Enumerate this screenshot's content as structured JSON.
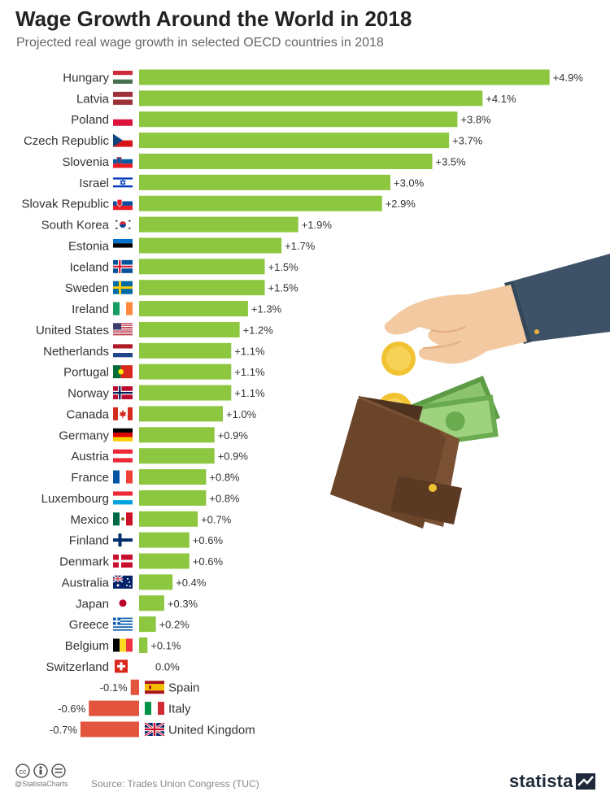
{
  "header": {
    "title": "Wage Growth Around the World in 2018",
    "subtitle": "Projected real wage growth in selected OECD countries in 2018"
  },
  "chart_data": {
    "type": "bar",
    "orientation": "horizontal",
    "title": "Wage Growth Around the World in 2018",
    "subtitle": "Projected real wage growth in selected OECD countries in 2018",
    "unit": "%",
    "categories": [
      "Hungary",
      "Latvia",
      "Poland",
      "Czech Republic",
      "Slovenia",
      "Israel",
      "Slovak Republic",
      "South Korea",
      "Estonia",
      "Iceland",
      "Sweden",
      "Ireland",
      "United States",
      "Netherlands",
      "Portugal",
      "Norway",
      "Canada",
      "Germany",
      "Austria",
      "France",
      "Luxembourg",
      "Mexico",
      "Finland",
      "Denmark",
      "Australia",
      "Japan",
      "Greece",
      "Belgium",
      "Switzerland",
      "Spain",
      "Italy",
      "United Kingdom"
    ],
    "values": [
      4.9,
      4.1,
      3.8,
      3.7,
      3.5,
      3.0,
      2.9,
      1.9,
      1.7,
      1.5,
      1.5,
      1.3,
      1.2,
      1.1,
      1.1,
      1.1,
      1.0,
      0.9,
      0.9,
      0.8,
      0.8,
      0.7,
      0.6,
      0.6,
      0.4,
      0.3,
      0.2,
      0.1,
      0.0,
      -0.1,
      -0.6,
      -0.7
    ],
    "data_labels": [
      "+4.9%",
      "+4.1%",
      "+3.8%",
      "+3.7%",
      "+3.5%",
      "+3.0%",
      "+2.9%",
      "+1.9%",
      "+1.7%",
      "+1.5%",
      "+1.5%",
      "+1.3%",
      "+1.2%",
      "+1.1%",
      "+1.1%",
      "+1.1%",
      "+1.0%",
      "+0.9%",
      "+0.9%",
      "+0.8%",
      "+0.8%",
      "+0.7%",
      "+0.6%",
      "+0.6%",
      "+0.4%",
      "+0.3%",
      "+0.2%",
      "+0.1%",
      "0.0%",
      "-0.1%",
      "-0.6%",
      "-0.7%"
    ],
    "flags": [
      "hungary-flag",
      "latvia-flag",
      "poland-flag",
      "czech-flag",
      "slovenia-flag",
      "israel-flag",
      "slovakia-flag",
      "south-korea-flag",
      "estonia-flag",
      "iceland-flag",
      "sweden-flag",
      "ireland-flag",
      "usa-flag",
      "netherlands-flag",
      "portugal-flag",
      "norway-flag",
      "canada-flag",
      "germany-flag",
      "austria-flag",
      "france-flag",
      "luxembourg-flag",
      "mexico-flag",
      "finland-flag",
      "denmark-flag",
      "australia-flag",
      "japan-flag",
      "greece-flag",
      "belgium-flag",
      "switzerland-flag",
      "spain-flag",
      "italy-flag",
      "uk-flag"
    ],
    "colors": {
      "positive": "#8dc63f",
      "negative": "#e2543e"
    },
    "xlim": [
      -0.7,
      4.9
    ],
    "grid": false,
    "legend": "none"
  },
  "footer": {
    "handle": "@StatistaCharts",
    "source": "Source: Trades Union Congress (TUC)",
    "brand": "statista",
    "license_icon": "creative-commons-icon"
  },
  "illustration": {
    "description_icon": "hand-wallet-coins-icon"
  }
}
